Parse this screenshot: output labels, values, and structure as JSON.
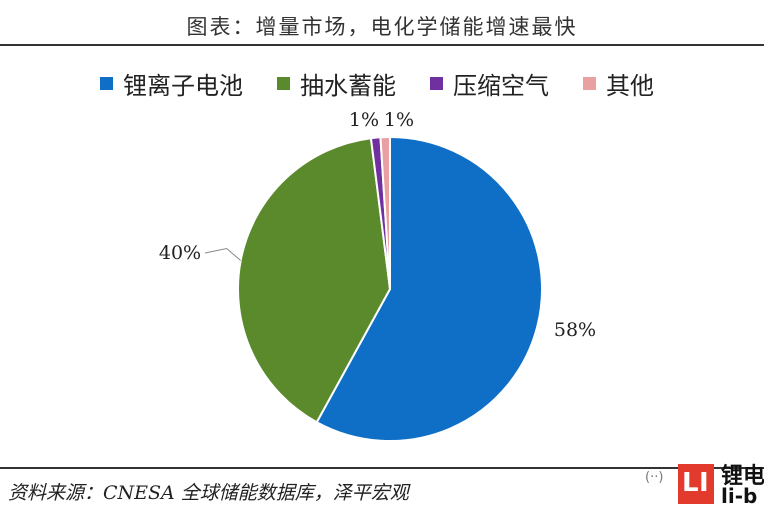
{
  "header": {
    "title": "图表：增量市场，电化学储能增速最快"
  },
  "chart_data": {
    "type": "pie",
    "legend_position": "top",
    "start_angle_deg": 0,
    "slices": [
      {
        "label": "锂离子电池",
        "value": 58,
        "data_label": "58%",
        "color": "#0f6fc6"
      },
      {
        "label": "抽水蓄能",
        "value": 40,
        "data_label": "40%",
        "color": "#5a8a2c"
      },
      {
        "label": "压缩空气",
        "value": 1,
        "data_label": "1%",
        "color": "#7030a0"
      },
      {
        "label": "其他",
        "value": 1,
        "data_label": "1%",
        "color": "#e8a0a0"
      }
    ]
  },
  "footer": {
    "source": "资料来源：CNESA 全球储能数据库，泽平宏观"
  },
  "watermark": {
    "icon": "wechat-icon",
    "line1": "锂电",
    "line2": "li-b",
    "logo_letters": [
      "L",
      "I"
    ]
  }
}
